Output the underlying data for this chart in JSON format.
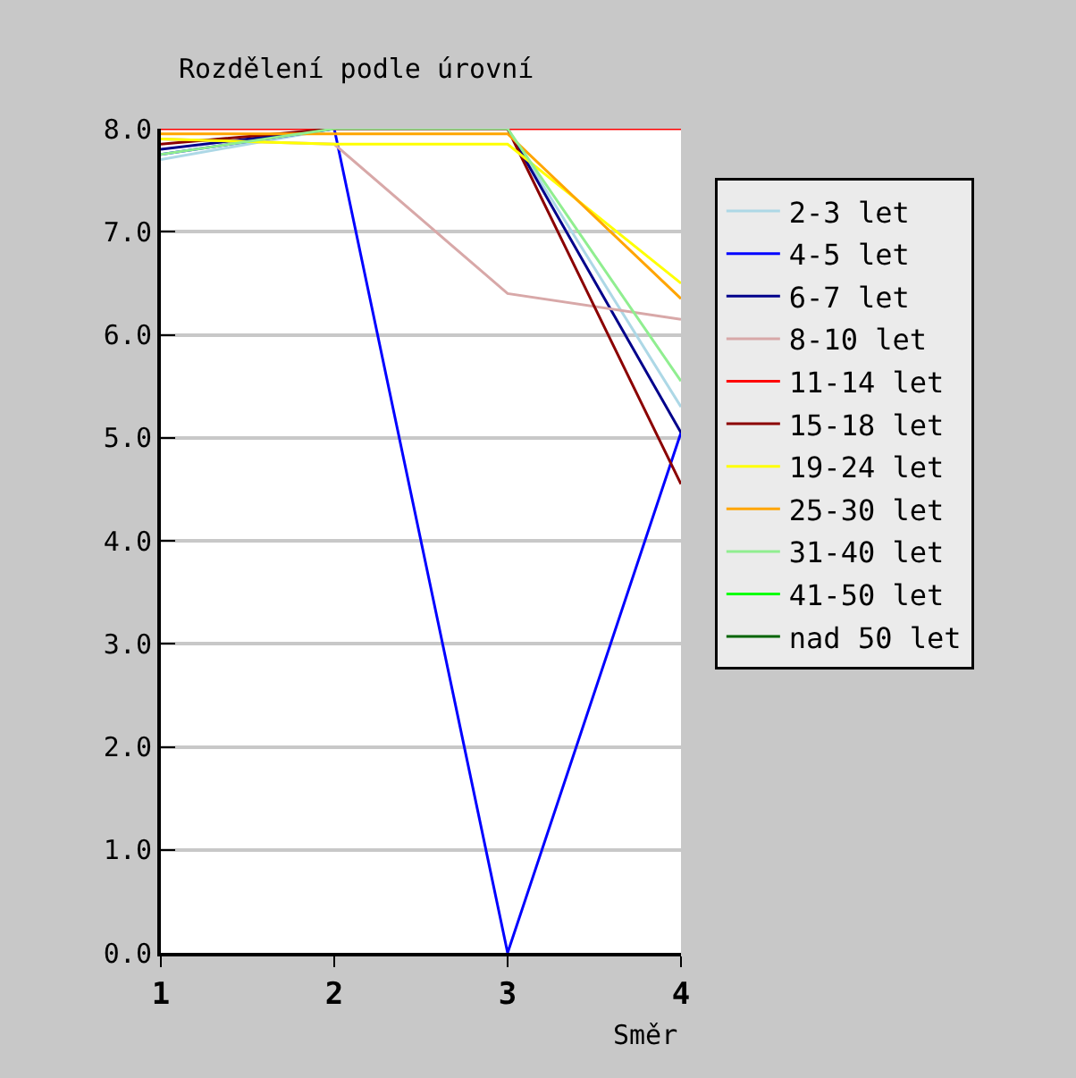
{
  "chart_data": {
    "type": "line",
    "title": "Rozdělení podle úrovní",
    "xlabel": "Směr",
    "x": [
      1,
      2,
      3,
      4
    ],
    "xlim": [
      1,
      4
    ],
    "xticks": [
      1,
      2,
      3,
      4
    ],
    "ylim": [
      0,
      8
    ],
    "yticks": [
      {
        "value": 0,
        "label": "0.0"
      },
      {
        "value": 1,
        "label": "1.0"
      },
      {
        "value": 2,
        "label": "2.0"
      },
      {
        "value": 3,
        "label": "3.0"
      },
      {
        "value": 4,
        "label": "4.0"
      },
      {
        "value": 5,
        "label": "5.0"
      },
      {
        "value": 6,
        "label": "6.0"
      },
      {
        "value": 7,
        "label": "7.0"
      },
      {
        "value": 8,
        "label": "8.0"
      }
    ],
    "grid": "y",
    "legend": "right",
    "marker": "none",
    "line_style": "solid",
    "series": [
      {
        "name": "2-3 let",
        "color": "#add8e6",
        "values": [
          7.7,
          8.0,
          8.0,
          5.3
        ]
      },
      {
        "name": "4-5 let",
        "color": "#0000ff",
        "values": [
          7.75,
          8.0,
          0.0,
          5.05
        ]
      },
      {
        "name": "6-7 let",
        "color": "#00008b",
        "values": [
          7.8,
          8.0,
          8.0,
          5.05
        ]
      },
      {
        "name": "8-10 let",
        "color": "#d8a8a8",
        "values": [
          7.9,
          7.85,
          6.4,
          6.15
        ]
      },
      {
        "name": "11-14 let",
        "color": "#ff0000",
        "values": [
          8.0,
          8.0,
          8.0,
          8.0
        ]
      },
      {
        "name": "15-18 let",
        "color": "#8b0000",
        "values": [
          7.85,
          8.0,
          8.0,
          4.55
        ]
      },
      {
        "name": "19-24 let",
        "color": "#ffff00",
        "values": [
          7.9,
          7.85,
          7.85,
          6.5
        ]
      },
      {
        "name": "25-30 let",
        "color": "#ffa500",
        "values": [
          7.95,
          7.95,
          7.95,
          6.35
        ]
      },
      {
        "name": "31-40 let",
        "color": "#90ee90",
        "values": [
          7.75,
          8.0,
          8.0,
          5.55
        ]
      },
      {
        "name": "41-50 let",
        "color": "#00ff00",
        "values": [
          null,
          null,
          null,
          null
        ]
      },
      {
        "name": "nad 50 let",
        "color": "#006400",
        "values": [
          null,
          null,
          null,
          null
        ]
      }
    ]
  }
}
